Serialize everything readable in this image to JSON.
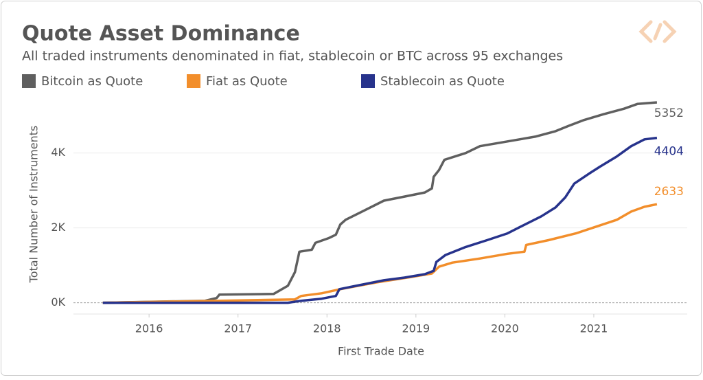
{
  "chart_data": {
    "type": "line",
    "title": "Quote Asset Dominance",
    "subtitle": "All traded instruments denominated in fiat, stablecoin or BTC across 95 exchanges",
    "x_label": "First Trade Date",
    "y_label": "Total Number of Instruments",
    "xlim": [
      2015.15,
      2022.05
    ],
    "xticks": [
      2016,
      2017,
      2018,
      2019,
      2020,
      2021
    ],
    "ylim": [
      -300,
      5700
    ],
    "yticks": [
      {
        "value": 0,
        "label": "0K"
      },
      {
        "value": 2000,
        "label": "2K"
      },
      {
        "value": 4000,
        "label": "4K"
      }
    ],
    "grid": true,
    "series": [
      {
        "name": "Bitcoin as Quote",
        "color": "#5f5f5f",
        "x": [
          2015.48,
          2016.63,
          2016.76,
          2016.79,
          2017.4,
          2017.56,
          2017.64,
          2017.69,
          2017.83,
          2017.87,
          2018.02,
          2018.1,
          2018.15,
          2018.21,
          2018.41,
          2018.64,
          2018.87,
          2019.1,
          2019.18,
          2019.2,
          2019.26,
          2019.32,
          2019.56,
          2019.72,
          2020.03,
          2020.34,
          2020.57,
          2020.72,
          2020.88,
          2021.11,
          2021.34,
          2021.49,
          2021.71
        ],
        "values": [
          0,
          55,
          127,
          218,
          236,
          455,
          818,
          1364,
          1418,
          1600,
          1727,
          1818,
          2091,
          2218,
          2455,
          2727,
          2836,
          2945,
          3055,
          3364,
          3545,
          3818,
          4000,
          4182,
          4309,
          4436,
          4582,
          4727,
          4873,
          5036,
          5182,
          5309,
          5352
        ]
      },
      {
        "name": "Fiat as Quote",
        "color": "#f28e2b",
        "x": [
          2015.48,
          2016.79,
          2017.64,
          2017.71,
          2017.94,
          2018.15,
          2018.56,
          2018.95,
          2019.18,
          2019.26,
          2019.41,
          2019.72,
          2020.03,
          2020.22,
          2020.24,
          2020.49,
          2020.8,
          2021.03,
          2021.26,
          2021.42,
          2021.57,
          2021.71
        ],
        "values": [
          0,
          55,
          91,
          182,
          255,
          364,
          545,
          691,
          782,
          964,
          1073,
          1182,
          1309,
          1364,
          1545,
          1673,
          1855,
          2036,
          2218,
          2436,
          2564,
          2633
        ]
      },
      {
        "name": "Stablecoin as Quote",
        "color": "#27338c",
        "x": [
          2015.48,
          2017.56,
          2017.71,
          2017.94,
          2018.1,
          2018.14,
          2018.33,
          2018.64,
          2018.87,
          2019.1,
          2019.2,
          2019.23,
          2019.33,
          2019.56,
          2019.8,
          2020.03,
          2020.18,
          2020.41,
          2020.57,
          2020.68,
          2020.78,
          2020.95,
          2021.07,
          2021.26,
          2021.42,
          2021.57,
          2021.71
        ],
        "values": [
          0,
          0,
          55,
          109,
          182,
          364,
          455,
          600,
          673,
          764,
          855,
          1091,
          1273,
          1491,
          1673,
          1855,
          2036,
          2309,
          2545,
          2818,
          3182,
          3455,
          3636,
          3909,
          4182,
          4364,
          4404
        ]
      }
    ]
  }
}
